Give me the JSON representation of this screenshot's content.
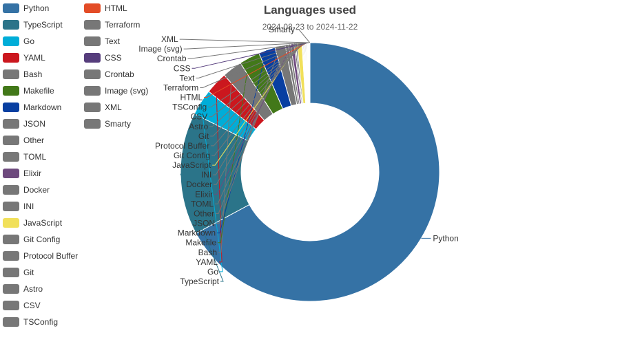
{
  "chart_data": {
    "type": "pie",
    "title": "Languages used",
    "subtitle": "2024-08-23 to 2024-11-22",
    "donut": true,
    "legend_placement": "left",
    "slices": [
      {
        "label": "Python",
        "value": 67.6,
        "color": "#3572A5"
      },
      {
        "label": "TypeScript",
        "value": 15.4,
        "color": "#2b7489"
      },
      {
        "label": "Go",
        "value": 3.3,
        "color": "#00ADD8"
      },
      {
        "label": "YAML",
        "value": 2.8,
        "color": "#cb171e"
      },
      {
        "label": "Bash",
        "value": 2.5,
        "color": "#777777"
      },
      {
        "label": "Makefile",
        "value": 2.6,
        "color": "#427819"
      },
      {
        "label": "Markdown",
        "value": 2.1,
        "color": "#083fa1"
      },
      {
        "label": "JSON",
        "value": 1.3,
        "color": "#777777"
      },
      {
        "label": "Other",
        "value": 0.4,
        "color": "#777777"
      },
      {
        "label": "TOML",
        "value": 0.3,
        "color": "#777777"
      },
      {
        "label": "Elixir",
        "value": 0.4,
        "color": "#6e4a7e"
      },
      {
        "label": "Docker",
        "value": 0.2,
        "color": "#777777"
      },
      {
        "label": "INI",
        "value": 0.2,
        "color": "#777777"
      },
      {
        "label": "JavaScript",
        "value": 0.6,
        "color": "#f1e05a"
      },
      {
        "label": "Git Config",
        "value": 0.1,
        "color": "#777777"
      },
      {
        "label": "Protocol Buffer",
        "value": 0.1,
        "color": "#777777"
      },
      {
        "label": "Git",
        "value": 0.1,
        "color": "#777777"
      },
      {
        "label": "Astro",
        "value": 0.1,
        "color": "#777777"
      },
      {
        "label": "CSV",
        "value": 0.1,
        "color": "#777777"
      },
      {
        "label": "TSConfig",
        "value": 0.1,
        "color": "#777777"
      },
      {
        "label": "HTML",
        "value": 0.05,
        "color": "#e34c26"
      },
      {
        "label": "Terraform",
        "value": 0.05,
        "color": "#777777"
      },
      {
        "label": "Text",
        "value": 0.05,
        "color": "#777777"
      },
      {
        "label": "CSS",
        "value": 0.05,
        "color": "#563d7c"
      },
      {
        "label": "Crontab",
        "value": 0.05,
        "color": "#777777"
      },
      {
        "label": "Image (svg)",
        "value": 0.05,
        "color": "#777777"
      },
      {
        "label": "XML",
        "value": 0.05,
        "color": "#777777"
      },
      {
        "label": "Smarty",
        "value": 0.05,
        "color": "#777777"
      }
    ]
  }
}
